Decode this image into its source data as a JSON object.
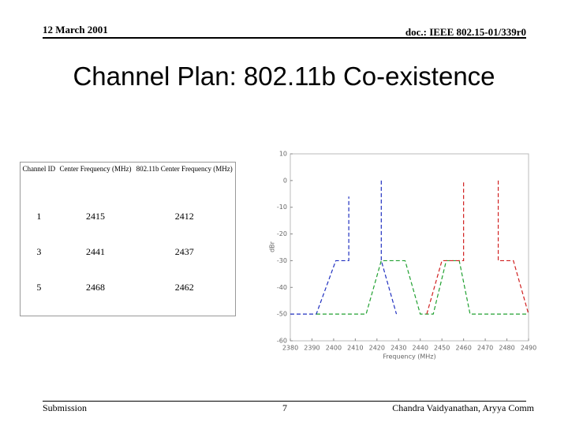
{
  "header": {
    "date": "12 March 2001",
    "doc": "doc.: IEEE 802.15-01/339r0"
  },
  "title": "Channel Plan: 802.11b Co-existence",
  "table": {
    "columns": [
      "Channel ID",
      "Center Frequency (MHz)",
      "802.11b Center Frequency (MHz)"
    ],
    "rows": [
      [
        "1",
        "2415",
        "2412"
      ],
      [
        "3",
        "2441",
        "2437"
      ],
      [
        "5",
        "2468",
        "2462"
      ]
    ]
  },
  "chart_data": {
    "type": "line",
    "xlabel": "Frequency (MHz)",
    "ylabel": "dBr",
    "xlim": [
      2380,
      2490
    ],
    "ylim": [
      -60,
      10
    ],
    "xticks": [
      2380,
      2390,
      2400,
      2410,
      2420,
      2430,
      2440,
      2450,
      2460,
      2470,
      2480,
      2490
    ],
    "yticks": [
      10,
      0,
      -10,
      -20,
      -30,
      -40,
      -50,
      -60
    ],
    "series": [
      {
        "color": "#2030c0",
        "x": [
          2380,
          2392,
          2401,
          2407,
          2407,
          null,
          2422,
          2422,
          2429
        ],
        "y": [
          -50,
          -50,
          -30,
          -30,
          -6,
          null,
          0,
          -30,
          -50
        ]
      },
      {
        "color": "#20a030",
        "x": [
          2392,
          2415,
          2422,
          2433,
          2440,
          2446,
          2452,
          2458,
          2463,
          2490
        ],
        "y": [
          -50,
          -50,
          -30,
          -30,
          -50,
          -50,
          -30,
          -30,
          -50,
          -50
        ]
      },
      {
        "color": "#d02020",
        "x": [
          2443,
          2450,
          2460,
          2460,
          null,
          2476,
          2476,
          2483,
          2490
        ],
        "y": [
          -50,
          -30,
          -30,
          0,
          null,
          0,
          -30,
          -30,
          -50
        ]
      }
    ]
  },
  "footer": {
    "left": "Submission",
    "page": "7",
    "right": "Chandra Vaidyanathan, Aryya Comm"
  }
}
